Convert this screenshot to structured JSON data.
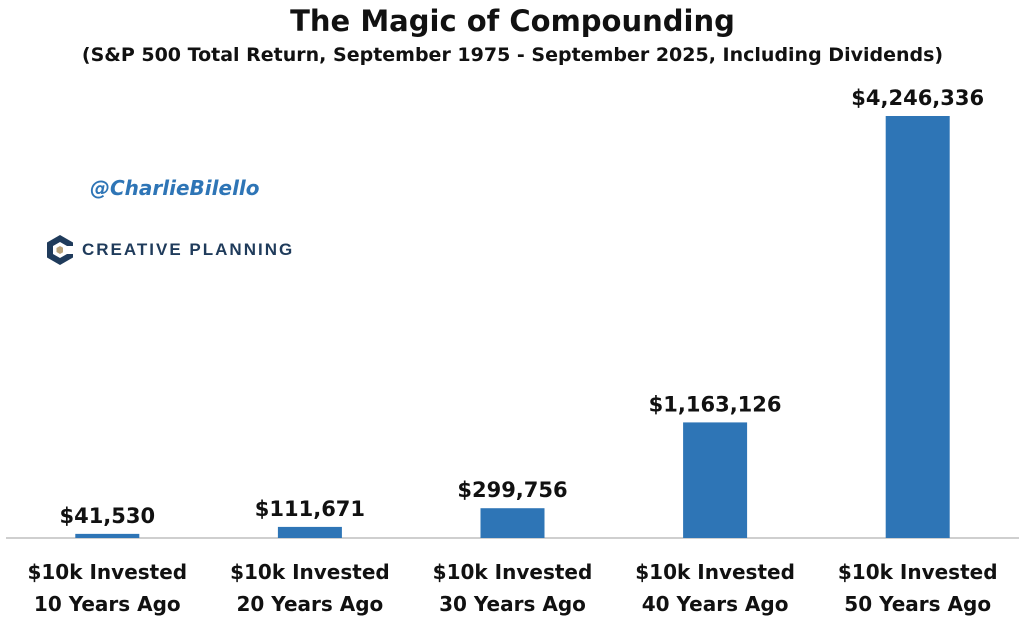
{
  "title": "The Magic of Compounding",
  "subtitle": "(S&P 500 Total Return, September 1975 - September 2025, Including Dividends)",
  "watermark": {
    "handle": "@CharlieBilello",
    "handle_color": "#2e75b6",
    "brand": "CREATIVE PLANNING",
    "brand_color": "#1f3b5b",
    "brand_accent": "#b9a37a"
  },
  "colors": {
    "bar": "#2e75b6",
    "axis": "#bfbfbf",
    "text": "#111111"
  },
  "chart_data": {
    "type": "bar",
    "categories": [
      [
        "$10k Invested",
        "10 Years Ago"
      ],
      [
        "$10k Invested",
        "20 Years Ago"
      ],
      [
        "$10k Invested",
        "30 Years Ago"
      ],
      [
        "$10k Invested",
        "40 Years Ago"
      ],
      [
        "$10k Invested",
        "50 Years Ago"
      ]
    ],
    "values": [
      41530,
      111671,
      299756,
      1163126,
      4246336
    ],
    "value_labels": [
      "$41,530",
      "$111,671",
      "$299,756",
      "$1,163,126",
      "$4,246,336"
    ],
    "title": "The Magic of Compounding",
    "subtitle": "(S&P 500 Total Return, September 1975 - September 2025, Including Dividends)",
    "ylim": [
      0,
      4246336
    ],
    "grid": false,
    "legend": "none"
  }
}
